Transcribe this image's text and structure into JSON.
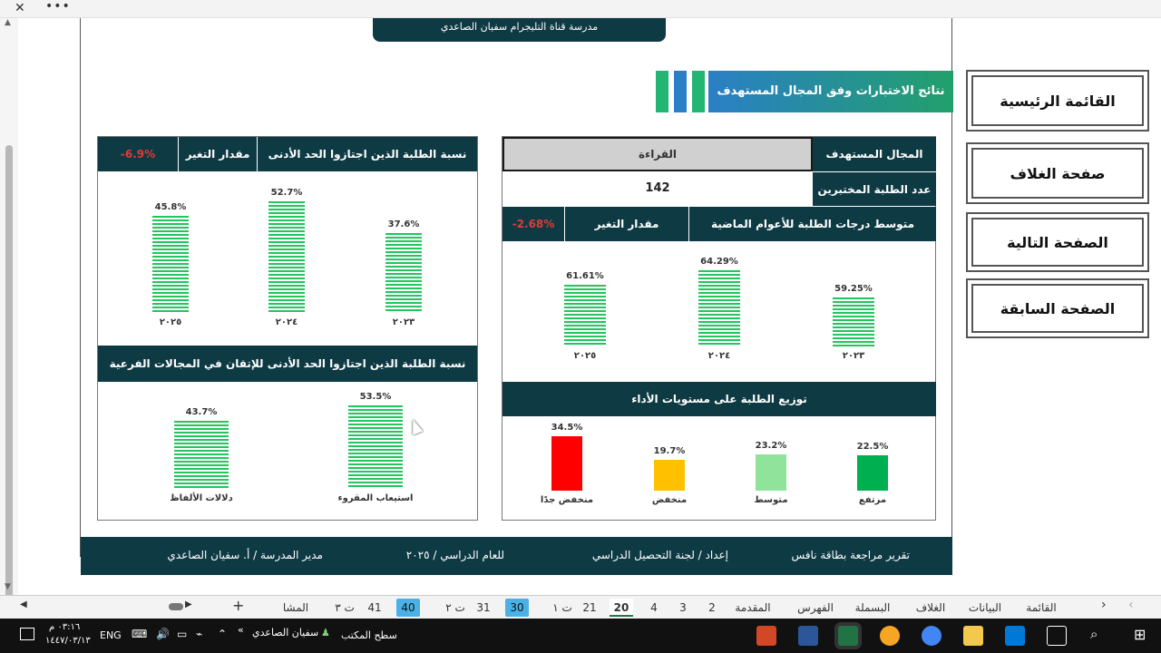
{
  "window": {
    "close_glyph": "✕",
    "more_glyph": "•••"
  },
  "school_name": "مدرسة قناة التليجرام سفيان الصاعدي",
  "section_title": "نتائج الاختبارات وفق المجال المستهدف",
  "right_panel": {
    "field_label": "المجال المستهدف",
    "field_value": "القراءة",
    "count_label": "عدد الطلبة المختبرين",
    "count_value": "142",
    "avg_label": "متوسط درجات الطلبة للأعوام الماضية",
    "change_label": "مقدار التغير",
    "change_value": "-2.68%",
    "dist_title": "توزيع الطلبة على مستويات الأداء"
  },
  "left_panel": {
    "mastery_label": "نسبة الطلبة الذين اجتازوا الحد الأدنى للإتقان",
    "change_label": "مقدار التغير",
    "change_value": "-6.9%",
    "sub_title": "نسبة الطلبة الذين اجتازوا الحد الأدنى للإتقان في المجالات الفرعية"
  },
  "chart_data": [
    {
      "type": "bar",
      "categories": [
        "٢٠٢٥",
        "٢٠٢٤",
        "٢٠٢٣"
      ],
      "values": [
        45.8,
        52.7,
        37.6
      ],
      "labels": [
        "45.8%",
        "52.7%",
        "37.6%"
      ],
      "ylim": [
        0,
        60
      ]
    },
    {
      "type": "bar",
      "categories": [
        "دلالات الألفاظ",
        "استيعاب المقروء"
      ],
      "values": [
        43.7,
        53.5
      ],
      "labels": [
        "43.7%",
        "53.5%"
      ],
      "ylim": [
        0,
        60
      ]
    },
    {
      "type": "bar",
      "categories": [
        "٢٠٢٥",
        "٢٠٢٤",
        "٢٠٢٣"
      ],
      "values": [
        61.61,
        64.29,
        59.25
      ],
      "labels": [
        "61.61%",
        "64.29%",
        "59.25%"
      ]
    },
    {
      "type": "bar",
      "categories": [
        "منخفض جدًا",
        "منخفض",
        "متوسط",
        "مرتفع"
      ],
      "values": [
        34.5,
        19.7,
        23.2,
        22.5
      ],
      "labels": [
        "34.5%",
        "19.7%",
        "23.2%",
        "22.5%"
      ],
      "colors": [
        "#ff0000",
        "#ffc000",
        "#8fe39a",
        "#00b050"
      ],
      "ylim": [
        0,
        40
      ]
    }
  ],
  "nav": {
    "main": "القائمة الرئيسية",
    "cover": "صفحة الغلاف",
    "next": "الصفحة التالية",
    "prev": "الصفحة السابقة"
  },
  "footer": {
    "report": "تقرير مراجعة بطاقة نافس",
    "prepared": "إعداد / لجنة التحصيل الدراسي",
    "year": "للعام الدراسي / ٢٠٢٥",
    "principal": "مدير المدرسة / أ. سفيان الصاعدي"
  },
  "sheet_tabs": [
    "القائمة",
    "البيانات",
    "الغلاف",
    "البسملة",
    "الفهرس",
    "المقدمة",
    "2",
    "3",
    "4",
    "20",
    "21",
    "ت ١",
    "30",
    "31",
    "ت ٢",
    "40",
    "41",
    "ت ٣",
    "المشا"
  ],
  "active_tab": "20",
  "highlighted_tabs": [
    "30",
    "40"
  ],
  "taskbar": {
    "time": "٠٣:١٦ م",
    "date": "١٤٤٧/٠٣/١٣",
    "lang": "ENG",
    "user": "سفيان الصاعدي",
    "desktop": "سطح المكتب",
    "chevron": "«"
  }
}
